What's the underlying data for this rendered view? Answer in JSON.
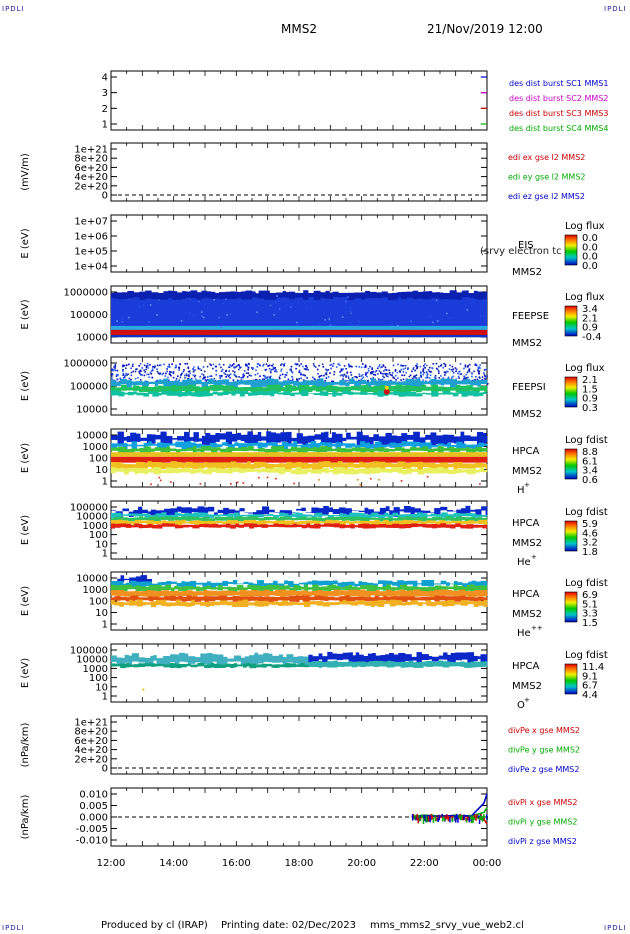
{
  "corner_label": "IPDLI",
  "header": {
    "spacecraft": "MMS2",
    "datetime": "21/Nov/2019 12:00"
  },
  "footer": {
    "produced_by": "Produced by cl (IRAP)",
    "printing_date": "Printing date: 02/Dec/2023",
    "filename": "mms_mms2_srvy_vue_web2.cl"
  },
  "chart_data": {
    "type": "multi-panel spectrogram / time series",
    "x": {
      "ticks": [
        "12:00",
        "14:00",
        "16:00",
        "18:00",
        "20:00",
        "22:00",
        "00:00"
      ],
      "range_hours": [
        12,
        24
      ]
    },
    "panels": [
      {
        "id": "burst",
        "type": "step",
        "ylabel": "",
        "yticks": [
          "4",
          "3",
          "2",
          "1"
        ],
        "series": [
          {
            "name": "des dist burst SC1 MMS1",
            "color": "#0000cc",
            "level": 4,
            "x": [
              23.8,
              24.0
            ]
          },
          {
            "name": "des dist burst SC2 MMS2",
            "color": "#cc00cc",
            "level": 3,
            "x": [
              23.8,
              24.0
            ]
          },
          {
            "name": "des dist burst SC3 MMS3",
            "color": "#cc0000",
            "level": 2,
            "x": [
              23.8,
              24.0
            ]
          },
          {
            "name": "des dist burst SC4 MMS4",
            "color": "#00aa00",
            "level": 1,
            "x": [
              23.8,
              24.0
            ]
          }
        ]
      },
      {
        "id": "edi",
        "type": "line",
        "ylabel": "(mV/m)",
        "yticks": [
          "1e+21",
          "8e+20",
          "6e+20",
          "4e+20",
          "2e+20",
          "0"
        ],
        "series": [
          {
            "name": "edi ex gse l2 MMS2",
            "color": "#cc0000"
          },
          {
            "name": "edi ey gse l2 MMS2",
            "color": "#00aa00"
          },
          {
            "name": "edi ez gse l2 MMS2",
            "color": "#0000cc"
          }
        ]
      },
      {
        "id": "eis",
        "type": "heatmap",
        "ylabel": "E (eV)",
        "yticks": [
          "1e+07",
          "1e+06",
          "1e+05",
          "1e+04"
        ],
        "labels": [
          "EIS",
          "MMS2"
        ],
        "overlay_text": "(srvy electron tc",
        "colorbar": {
          "title": "Log flux",
          "ticks": [
            "0.0",
            "0.0",
            "0.0",
            "0.0"
          ]
        }
      },
      {
        "id": "feepse",
        "type": "heatmap",
        "ylabel": "E (eV)",
        "yticks": [
          "1000000",
          "100000",
          "10000"
        ],
        "labels": [
          "FEEPSE",
          "MMS2"
        ],
        "colorbar": {
          "title": "Log flux",
          "ticks": [
            "3.4",
            "2.1",
            "0.9",
            "-0.4"
          ]
        }
      },
      {
        "id": "feepsi",
        "type": "heatmap",
        "ylabel": "E (eV)",
        "yticks": [
          "1000000",
          "100000",
          "10000"
        ],
        "labels": [
          "FEEPSI",
          "MMS2"
        ],
        "colorbar": {
          "title": "Log flux",
          "ticks": [
            "2.1",
            "1.5",
            "0.9",
            "0.3"
          ]
        }
      },
      {
        "id": "hpca-h",
        "type": "heatmap",
        "ylabel": "E (eV)",
        "yticks": [
          "10000",
          "1000",
          "100",
          "10",
          "1"
        ],
        "labels": [
          "HPCA",
          "MMS2"
        ],
        "species": "H",
        "charge": "+",
        "colorbar": {
          "title": "Log fdist",
          "ticks": [
            "8.8",
            "6.1",
            "3.4",
            "0.6"
          ]
        }
      },
      {
        "id": "hpca-he",
        "type": "heatmap",
        "ylabel": "E (eV)",
        "yticks": [
          "100000",
          "10000",
          "1000",
          "100",
          "10",
          "1"
        ],
        "labels": [
          "HPCA",
          "MMS2"
        ],
        "species": "He",
        "charge": "+",
        "colorbar": {
          "title": "Log fdist",
          "ticks": [
            "5.9",
            "4.6",
            "3.2",
            "1.8"
          ]
        }
      },
      {
        "id": "hpca-hepp",
        "type": "heatmap",
        "ylabel": "E (eV)",
        "yticks": [
          "10000",
          "1000",
          "100",
          "10",
          "1"
        ],
        "labels": [
          "HPCA",
          "MMS2"
        ],
        "species": "He",
        "charge": "++",
        "colorbar": {
          "title": "Log fdist",
          "ticks": [
            "6.9",
            "5.1",
            "3.3",
            "1.5"
          ]
        }
      },
      {
        "id": "hpca-o",
        "type": "heatmap",
        "ylabel": "E (eV)",
        "yticks": [
          "100000",
          "10000",
          "1000",
          "100",
          "10",
          "1"
        ],
        "labels": [
          "HPCA",
          "MMS2"
        ],
        "species": "O",
        "charge": "+",
        "colorbar": {
          "title": "Log fdist",
          "ticks": [
            "11.4",
            "9.1",
            "6.7",
            "4.4"
          ]
        }
      },
      {
        "id": "divpe",
        "type": "line",
        "ylabel": "(nPa/km)",
        "yticks": [
          "1e+21",
          "8e+20",
          "6e+20",
          "4e+20",
          "2e+20",
          "0"
        ],
        "series": [
          {
            "name": "divPe x gse MMS2",
            "color": "#cc0000"
          },
          {
            "name": "divPe y gse MMS2",
            "color": "#00aa00"
          },
          {
            "name": "divPe z gse MMS2",
            "color": "#0000cc"
          }
        ]
      },
      {
        "id": "divpi",
        "type": "line",
        "ylabel": "(nPa/km)",
        "yticks": [
          "0.010",
          "0.005",
          "0.000",
          "-0.005",
          "-0.010"
        ],
        "series": [
          {
            "name": "divPi x gse MMS2",
            "color": "#cc0000",
            "x": [
              21.6,
              22.0,
              22.5,
              23.0,
              23.5,
              23.9,
              24.0
            ],
            "y": [
              -0.0005,
              0.0005,
              0.0,
              0.0003,
              0.0002,
              -0.001,
              -0.003
            ]
          },
          {
            "name": "divPi y gse MMS2",
            "color": "#00aa00",
            "x": [
              21.6,
              22.0,
              22.5,
              23.0,
              23.5,
              23.9,
              24.0
            ],
            "y": [
              0.0002,
              0.0008,
              0.0004,
              0.0006,
              0.0005,
              0.002,
              0.004
            ]
          },
          {
            "name": "divPi z gse MMS2",
            "color": "#0000cc",
            "x": [
              21.6,
              22.0,
              22.5,
              23.0,
              23.5,
              23.9,
              24.0
            ],
            "y": [
              0.0,
              0.0006,
              0.0003,
              0.0007,
              0.0004,
              0.006,
              0.01
            ]
          }
        ]
      }
    ]
  }
}
